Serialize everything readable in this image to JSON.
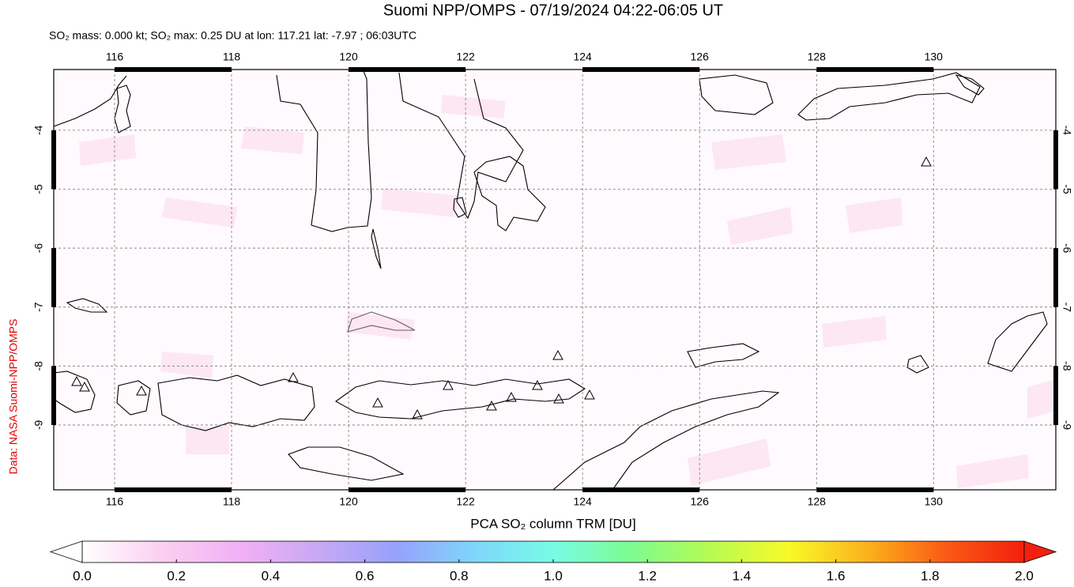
{
  "chart_data": {
    "type": "map",
    "title": "Suomi NPP/OMPS - 07/19/2024 04:22-06:05 UT",
    "subtitle": "SO₂ mass: 0.000 kt; SO₂ max: 0.25 DU at lon: 117.21 lat: -7.97 ; 06:03UTC",
    "credit": "Data: NASA Suomi-NPP/OMPS",
    "xlim": [
      114.96,
      132.09
    ],
    "ylim": [
      -10.1,
      -2.97
    ],
    "xticks": [
      116,
      118,
      120,
      122,
      124,
      126,
      128,
      130
    ],
    "yticks": [
      -4,
      -5,
      -6,
      -7,
      -8,
      -9
    ],
    "grid": true,
    "colorbar": {
      "label": "PCA SO₂ column TRM [DU]",
      "lim": [
        0,
        2
      ],
      "colors": [
        "#ffffff",
        "#fbd0f0",
        "#f2b0f6",
        "#c9a8f4",
        "#96a2fb",
        "#7fd6fb",
        "#78fbe6",
        "#7dfb8f",
        "#b6fb52",
        "#f9f928",
        "#fbb21c",
        "#fb5a14",
        "#f2200e"
      ],
      "ticks": [
        {
          "value": 0,
          "label": "0.0"
        },
        {
          "value": 0.2,
          "label": "0.2"
        },
        {
          "value": 0.4,
          "label": "0.4"
        },
        {
          "value": 0.6,
          "label": "0.6"
        },
        {
          "value": 0.8,
          "label": "0.8"
        },
        {
          "value": 1,
          "label": "1.0"
        },
        {
          "value": 1.2,
          "label": "1.2"
        },
        {
          "value": 1.4,
          "label": "1.4"
        },
        {
          "value": 1.6,
          "label": "1.6"
        },
        {
          "value": 1.8,
          "label": "1.8"
        },
        {
          "value": 2,
          "label": "2.0"
        }
      ]
    }
  }
}
